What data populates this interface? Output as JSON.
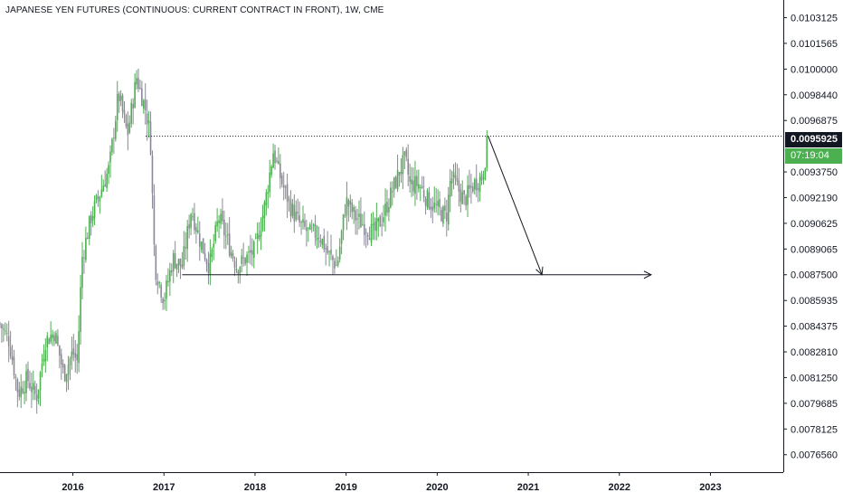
{
  "title": "JAPANESE YEN FUTURES (CONTINUOUS: CURRENT CONTRACT IN FRONT), 1W, CME",
  "chart_data": {
    "type": "candlestick",
    "title": "JAPANESE YEN FUTURES (CONTINUOUS: CURRENT CONTRACT IN FRONT), 1W, CME",
    "xlabel": "",
    "ylabel": "",
    "x_range": [
      2015.2,
      2023.8
    ],
    "y_range": [
      0.00755,
      0.01042
    ],
    "y_ticks": [
      "0.0103125",
      "0.0101565",
      "0.0100000",
      "0.0098440",
      "0.0096875",
      "0.0095925",
      "0.0093750",
      "0.0092190",
      "0.0090625",
      "0.0089065",
      "0.0087500",
      "0.0085935",
      "0.0084375",
      "0.0082810",
      "0.0081250",
      "0.0079685",
      "0.0078125",
      "0.0076560"
    ],
    "x_ticks": [
      "2016",
      "2017",
      "2018",
      "2019",
      "2020",
      "2021",
      "2022",
      "2023"
    ],
    "last_price": "0.0095925",
    "countdown": "07:19:04",
    "grid": false,
    "colors": {
      "up": "#4caf50",
      "down": "#8a8a96",
      "text": "#131722",
      "line": "#131722"
    },
    "price_path": [
      [
        2015.2,
        0.00845
      ],
      [
        2015.3,
        0.00835
      ],
      [
        2015.4,
        0.00803
      ],
      [
        2015.5,
        0.00812
      ],
      [
        2015.6,
        0.008
      ],
      [
        2015.7,
        0.00835
      ],
      [
        2015.8,
        0.0084
      ],
      [
        2015.9,
        0.00814
      ],
      [
        2016.0,
        0.00828
      ],
      [
        2016.05,
        0.00822
      ],
      [
        2016.1,
        0.00885
      ],
      [
        2016.2,
        0.0091
      ],
      [
        2016.3,
        0.00925
      ],
      [
        2016.4,
        0.0094
      ],
      [
        2016.5,
        0.00985
      ],
      [
        2016.6,
        0.0096
      ],
      [
        2016.7,
        0.00995
      ],
      [
        2016.8,
        0.00975
      ],
      [
        2016.85,
        0.0096
      ],
      [
        2016.9,
        0.0088
      ],
      [
        2017.0,
        0.0086
      ],
      [
        2017.1,
        0.00885
      ],
      [
        2017.2,
        0.0088
      ],
      [
        2017.3,
        0.00915
      ],
      [
        2017.4,
        0.00895
      ],
      [
        2017.5,
        0.0088
      ],
      [
        2017.6,
        0.0091
      ],
      [
        2017.7,
        0.00895
      ],
      [
        2017.8,
        0.0088
      ],
      [
        2017.9,
        0.00885
      ],
      [
        2018.0,
        0.0089
      ],
      [
        2018.1,
        0.00915
      ],
      [
        2018.2,
        0.0095
      ],
      [
        2018.25,
        0.0094
      ],
      [
        2018.3,
        0.0093
      ],
      [
        2018.4,
        0.00915
      ],
      [
        2018.5,
        0.00905
      ],
      [
        2018.6,
        0.009
      ],
      [
        2018.7,
        0.009
      ],
      [
        2018.8,
        0.00888
      ],
      [
        2018.9,
        0.0088
      ],
      [
        2019.0,
        0.0092
      ],
      [
        2019.1,
        0.0091
      ],
      [
        2019.2,
        0.00905
      ],
      [
        2019.3,
        0.009
      ],
      [
        2019.4,
        0.0091
      ],
      [
        2019.5,
        0.00925
      ],
      [
        2019.6,
        0.0094
      ],
      [
        2019.65,
        0.00945
      ],
      [
        2019.7,
        0.0093
      ],
      [
        2019.8,
        0.0093
      ],
      [
        2019.9,
        0.0092
      ],
      [
        2020.0,
        0.00915
      ],
      [
        2020.1,
        0.0091
      ],
      [
        2020.15,
        0.00935
      ],
      [
        2020.2,
        0.0093
      ],
      [
        2020.3,
        0.0092
      ],
      [
        2020.4,
        0.0093
      ],
      [
        2020.5,
        0.00935
      ],
      [
        2020.56,
        0.00959
      ]
    ],
    "annotations": [
      {
        "type": "horizontal_line",
        "style": "dotted",
        "y": 0.0095925,
        "x_from": 2016.8,
        "x_to": 2023.8
      },
      {
        "type": "arrow",
        "from": [
          2020.56,
          0.0095925
        ],
        "to": [
          2021.15,
          0.00875
        ]
      },
      {
        "type": "arrow",
        "from": [
          2017.2,
          0.00875
        ],
        "to": [
          2022.35,
          0.00875
        ]
      }
    ]
  }
}
